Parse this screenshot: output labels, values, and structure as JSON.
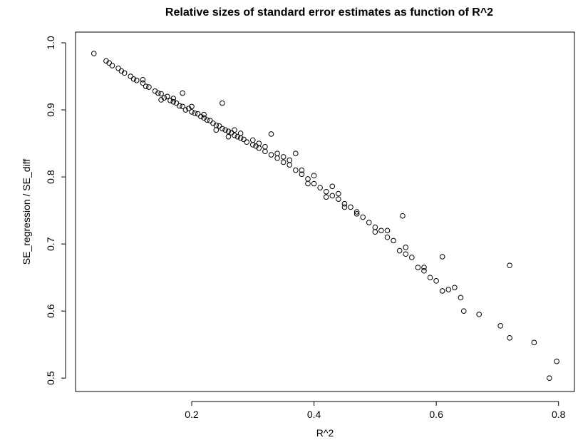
{
  "chart_data": {
    "type": "scatter",
    "title": "Relative sizes of standard error estimates as function of R^2",
    "x_label": "R^2",
    "y_label": "SE_regression / SE_diff",
    "color": "#000000",
    "x": [
      0.04,
      0.06,
      0.065,
      0.07,
      0.08,
      0.085,
      0.09,
      0.1,
      0.105,
      0.11,
      0.12,
      0.125,
      0.13,
      0.14,
      0.145,
      0.15,
      0.155,
      0.16,
      0.165,
      0.17,
      0.175,
      0.18,
      0.185,
      0.19,
      0.195,
      0.2,
      0.205,
      0.21,
      0.215,
      0.22,
      0.225,
      0.23,
      0.235,
      0.24,
      0.245,
      0.25,
      0.255,
      0.26,
      0.265,
      0.27,
      0.275,
      0.28,
      0.285,
      0.29,
      0.3,
      0.305,
      0.31,
      0.32,
      0.33,
      0.34,
      0.35,
      0.36,
      0.37,
      0.38,
      0.39,
      0.4,
      0.41,
      0.42,
      0.43,
      0.44,
      0.45,
      0.46,
      0.47,
      0.48,
      0.49,
      0.5,
      0.51,
      0.52,
      0.53,
      0.54,
      0.55,
      0.56,
      0.57,
      0.58,
      0.59,
      0.6,
      0.61,
      0.63,
      0.64,
      0.645,
      0.67,
      0.705,
      0.72,
      0.76,
      0.785,
      0.797,
      0.185,
      0.25,
      0.33,
      0.37,
      0.4,
      0.43,
      0.47,
      0.545,
      0.61,
      0.72,
      0.52,
      0.55,
      0.58,
      0.62,
      0.15,
      0.2,
      0.22,
      0.26,
      0.28,
      0.3,
      0.32,
      0.35,
      0.38,
      0.42,
      0.45,
      0.5,
      0.12,
      0.17,
      0.24,
      0.27,
      0.31,
      0.34,
      0.36,
      0.39,
      0.44
    ],
    "values": [
      0.984,
      0.973,
      0.97,
      0.966,
      0.962,
      0.958,
      0.955,
      0.95,
      0.946,
      0.944,
      0.94,
      0.935,
      0.934,
      0.928,
      0.925,
      0.924,
      0.918,
      0.92,
      0.914,
      0.912,
      0.91,
      0.906,
      0.905,
      0.9,
      0.902,
      0.897,
      0.895,
      0.894,
      0.89,
      0.888,
      0.885,
      0.884,
      0.88,
      0.877,
      0.876,
      0.872,
      0.87,
      0.868,
      0.866,
      0.862,
      0.86,
      0.858,
      0.856,
      0.852,
      0.848,
      0.846,
      0.843,
      0.838,
      0.833,
      0.828,
      0.822,
      0.818,
      0.81,
      0.804,
      0.797,
      0.79,
      0.784,
      0.778,
      0.772,
      0.767,
      0.76,
      0.755,
      0.748,
      0.74,
      0.732,
      0.725,
      0.72,
      0.71,
      0.705,
      0.69,
      0.685,
      0.68,
      0.665,
      0.66,
      0.65,
      0.645,
      0.63,
      0.635,
      0.62,
      0.6,
      0.595,
      0.578,
      0.56,
      0.553,
      0.5,
      0.525,
      0.925,
      0.91,
      0.864,
      0.835,
      0.802,
      0.786,
      0.745,
      0.742,
      0.681,
      0.668,
      0.72,
      0.695,
      0.665,
      0.632,
      0.915,
      0.905,
      0.893,
      0.86,
      0.865,
      0.855,
      0.845,
      0.83,
      0.81,
      0.77,
      0.755,
      0.718,
      0.945,
      0.917,
      0.87,
      0.87,
      0.85,
      0.835,
      0.825,
      0.79,
      0.775
    ],
    "xlim": [
      0.01,
      0.826
    ],
    "xticks": [
      0.2,
      0.4,
      0.6,
      0.8
    ],
    "ylim": [
      0.48,
      1.016
    ],
    "yticks": [
      0.5,
      0.6,
      0.7,
      0.8,
      0.9,
      {
        "value": 1,
        "label": "1.0"
      }
    ]
  }
}
